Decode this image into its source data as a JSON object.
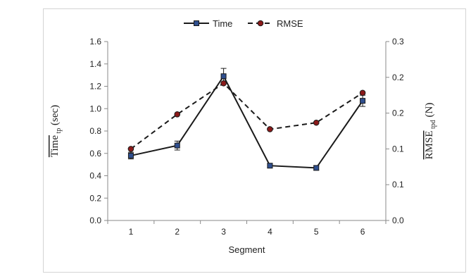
{
  "chart_data": {
    "type": "line",
    "categories": [
      "1",
      "2",
      "3",
      "4",
      "5",
      "6"
    ],
    "xlabel": "Segment",
    "ylabel_left": {
      "main": "Time",
      "sub": "tp",
      "unit": "(sec)"
    },
    "ylabel_right": {
      "main": "RMSE",
      "sub": "tpd",
      "unit": "(N)"
    },
    "ylim_left": [
      0.0,
      1.6
    ],
    "ylim_right": [
      0.0,
      0.3
    ],
    "yticks_left": [
      "0.0",
      "0.2",
      "0.4",
      "0.6",
      "0.8",
      "1.0",
      "1.2",
      "1.4",
      "1.6"
    ],
    "yticks_right": [
      "0.0",
      "0.1",
      "0.1",
      "0.2",
      "0.2",
      "0.3"
    ],
    "grid": false,
    "legend_position": "top-center",
    "series": [
      {
        "name": "Time",
        "axis": "left",
        "style": "solid",
        "marker": "square",
        "color": "#1a1a1a",
        "marker_color": "#2f4f8f",
        "values": [
          0.58,
          0.67,
          1.29,
          0.49,
          0.47,
          1.07
        ],
        "error": [
          0.03,
          0.04,
          0.07,
          0.02,
          0.02,
          0.05
        ]
      },
      {
        "name": "RMSE",
        "axis": "right",
        "style": "dashed",
        "marker": "circle",
        "color": "#1a1a1a",
        "marker_color": "#8b1a1a",
        "values": [
          0.12,
          0.178,
          0.23,
          0.153,
          0.164,
          0.214
        ]
      }
    ]
  }
}
